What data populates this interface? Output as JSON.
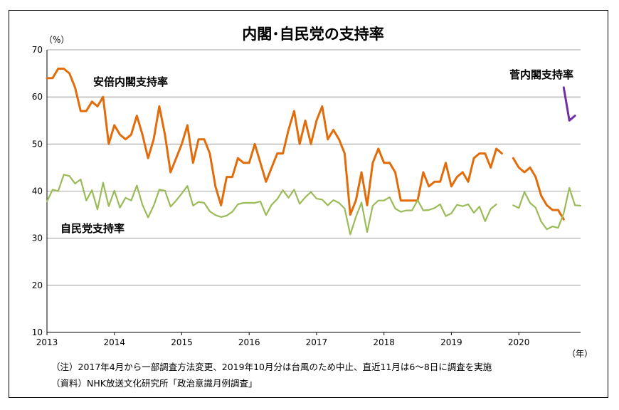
{
  "chart_data": {
    "type": "line",
    "title": "内閣･自民党の支持率",
    "y_unit_label": "（%）",
    "x_unit_label": "（年）",
    "ylim": [
      10,
      70
    ],
    "y_ticks": [
      10,
      20,
      30,
      40,
      50,
      60,
      70
    ],
    "xlim": [
      2013.0,
      2020.917
    ],
    "x_ticks": [
      "2013",
      "2014",
      "2015",
      "2016",
      "2017",
      "2018",
      "2019",
      "2020"
    ],
    "grid": true,
    "series": [
      {
        "name": "安倍内閣支持率",
        "color": "#E36C0A",
        "start": 2013.0,
        "step": 0.0833333,
        "values": [
          64,
          64,
          66,
          66,
          65,
          62,
          57,
          57,
          59,
          58,
          60,
          50,
          54,
          52,
          51,
          52,
          56,
          52,
          47,
          51,
          58,
          52,
          44,
          47,
          50,
          54,
          46,
          51,
          51,
          48,
          41,
          37,
          43,
          43,
          47,
          46,
          46,
          50,
          46,
          42,
          45,
          48,
          48,
          53,
          57,
          50,
          55,
          50,
          55,
          58,
          51,
          53,
          51,
          48,
          35,
          38,
          44,
          37,
          46,
          49,
          46,
          46,
          44,
          38,
          38,
          38,
          38,
          44,
          41,
          42,
          42,
          46,
          41,
          43,
          44,
          42,
          47,
          48,
          48,
          45,
          49,
          48
        ]
      },
      {
        "name": "",
        "color": "#E36C0A",
        "start": 2019.917,
        "step": 0.0833333,
        "values": [
          47,
          45,
          44,
          45,
          43,
          39,
          37,
          36,
          36,
          34
        ]
      },
      {
        "name": "自民党支持率",
        "color": "#9BBB59",
        "start": 2013.0,
        "step": 0.0833333,
        "values": [
          37.8,
          40.3,
          40.0,
          43.5,
          43.2,
          41.6,
          42.5,
          38.0,
          40.2,
          36.1,
          41.8,
          36.8,
          40.1,
          36.5,
          38.6,
          38.0,
          41.2,
          37.1,
          34.4,
          36.9,
          40.3,
          40.1,
          36.7,
          38.0,
          39.5,
          41.1,
          36.9,
          37.7,
          37.5,
          35.7,
          34.9,
          34.5,
          34.8,
          35.6,
          37.2,
          37.5,
          37.5,
          37.5,
          37.8,
          34.9,
          37.1,
          38.3,
          40.2,
          38.6,
          40.3,
          37.3,
          38.7,
          39.8,
          38.4,
          38.2,
          37.0,
          38.1,
          37.5,
          36.3,
          30.8,
          34.5,
          37.6,
          31.3,
          36.9,
          38.0,
          38.0,
          38.7,
          36.3,
          35.6,
          35.9,
          35.9,
          38.1,
          35.9,
          36.0,
          36.4,
          37.2,
          34.7,
          35.3,
          37.1,
          36.8,
          37.2,
          35.4,
          36.7,
          33.6,
          36.2,
          37.2
        ]
      },
      {
        "name": "",
        "color": "#9BBB59",
        "start": 2019.917,
        "step": 0.0833333,
        "values": [
          37.0,
          36.4,
          39.8,
          37.5,
          36.5,
          33.5,
          31.9,
          32.5,
          32.2,
          35.3,
          40.7,
          37.0,
          36.9
        ]
      },
      {
        "name": "菅内閣支持率",
        "color": "#7030A0",
        "start": 2020.667,
        "step": 0.0833333,
        "values": [
          62,
          55,
          56
        ]
      }
    ],
    "annotations": {
      "abe": "安倍内閣支持率",
      "ldp": "自民党支持率",
      "suga": "菅内閣支持率"
    }
  },
  "notes": {
    "line1": "（注）2017年4月から一部調査方法変更、2019年10月分は台風のため中止、直近11月は6～8日に調査を実施",
    "line2": "（資料）NHK放送文化研究所「政治意識月例調査」"
  }
}
